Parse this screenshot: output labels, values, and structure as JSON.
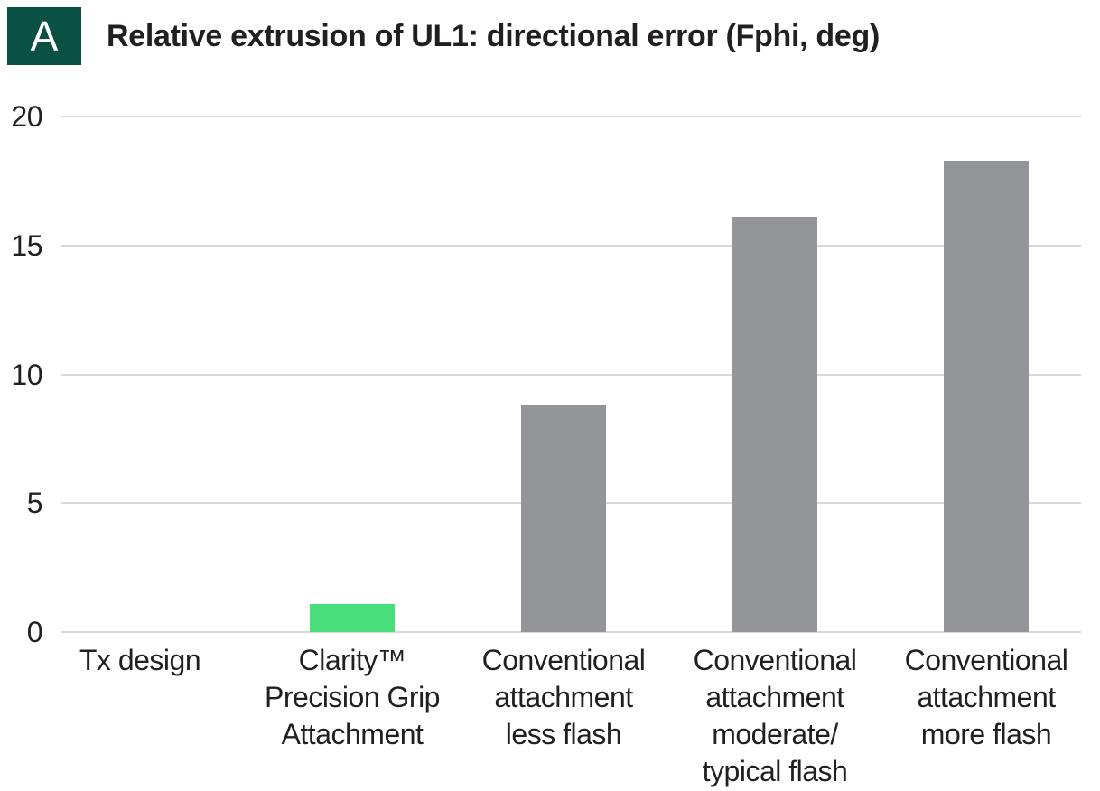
{
  "header": {
    "badge_label": "A",
    "title": "Relative extrusion of UL1: directional error (Fphi, deg)"
  },
  "colors": {
    "badge_background": "#0b5143",
    "badge_text": "#ffffff",
    "accent_green": "#48de79",
    "bar_gray": "#939598",
    "gridline": "#d9d9d9",
    "text": "#231f20"
  },
  "chart_data": {
    "type": "bar",
    "title": "Relative extrusion of UL1: directional error (Fphi, deg)",
    "panel_label": "A",
    "categories": [
      "Tx design",
      "Clarity™ Precision Grip Attachment",
      "Conventional attachment less flash",
      "Conventional attachment moderate/ typical flash",
      "Conventional attachment more flash"
    ],
    "category_lines": [
      [
        "Tx design"
      ],
      [
        "Clarity™",
        "Precision Grip",
        "Attachment"
      ],
      [
        "Conventional",
        "attachment",
        "less flash"
      ],
      [
        "Conventional",
        "attachment",
        "moderate/",
        "typical flash"
      ],
      [
        "Conventional",
        "attachment",
        "more flash"
      ]
    ],
    "values": [
      0,
      1.1,
      8.8,
      16.1,
      18.3
    ],
    "bar_colors": [
      "#939598",
      "#48de79",
      "#939598",
      "#939598",
      "#939598"
    ],
    "xlabel": "",
    "ylabel": "",
    "yticks": [
      0,
      5,
      10,
      15,
      20
    ],
    "ylim": [
      0,
      20
    ],
    "grid": true,
    "legend": "none",
    "highlighted_category": "Clarity™ Precision Grip Attachment"
  }
}
